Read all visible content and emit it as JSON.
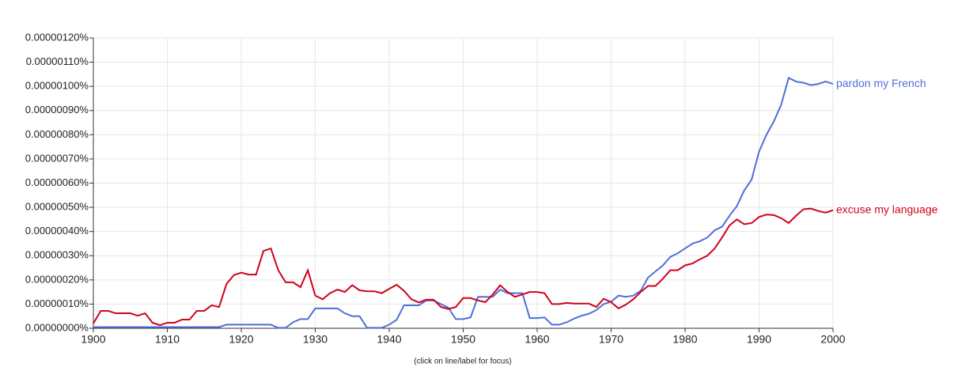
{
  "chart_data": {
    "type": "line",
    "caption": "(click on line/label for focus)",
    "x": [
      1900,
      1901,
      1902,
      1903,
      1904,
      1905,
      1906,
      1907,
      1908,
      1909,
      1910,
      1911,
      1912,
      1913,
      1914,
      1915,
      1916,
      1917,
      1918,
      1919,
      1920,
      1921,
      1922,
      1923,
      1924,
      1925,
      1926,
      1927,
      1928,
      1929,
      1930,
      1931,
      1932,
      1933,
      1934,
      1935,
      1936,
      1937,
      1938,
      1939,
      1940,
      1941,
      1942,
      1943,
      1944,
      1945,
      1946,
      1947,
      1948,
      1949,
      1950,
      1951,
      1952,
      1953,
      1954,
      1955,
      1956,
      1957,
      1958,
      1959,
      1960,
      1961,
      1962,
      1963,
      1964,
      1965,
      1966,
      1967,
      1968,
      1969,
      1970,
      1971,
      1972,
      1973,
      1974,
      1975,
      1976,
      1977,
      1978,
      1979,
      1980,
      1981,
      1982,
      1983,
      1984,
      1985,
      1986,
      1987,
      1988,
      1989,
      1990,
      1991,
      1992,
      1993,
      1994,
      1995,
      1996,
      1997,
      1998,
      1999,
      2000
    ],
    "xlim": [
      1900,
      2000
    ],
    "xticks": [
      1900,
      1910,
      1920,
      1930,
      1940,
      1950,
      1960,
      1970,
      1980,
      1990,
      2000
    ],
    "ylim": [
      0,
      1.2e-06
    ],
    "yticks": [
      {
        "value": 0,
        "label": "0.00000000%"
      },
      {
        "value": 1e-07,
        "label": "0.00000010%"
      },
      {
        "value": 2e-07,
        "label": "0.00000020%"
      },
      {
        "value": 3e-07,
        "label": "0.00000030%"
      },
      {
        "value": 4e-07,
        "label": "0.00000040%"
      },
      {
        "value": 5e-07,
        "label": "0.00000050%"
      },
      {
        "value": 6e-07,
        "label": "0.00000060%"
      },
      {
        "value": 7e-07,
        "label": "0.00000070%"
      },
      {
        "value": 8e-07,
        "label": "0.00000080%"
      },
      {
        "value": 9e-07,
        "label": "0.00000090%"
      },
      {
        "value": 1e-06,
        "label": "0.00000100%"
      },
      {
        "value": 1.1e-06,
        "label": "0.00000110%"
      },
      {
        "value": 1.2e-06,
        "label": "0.00000120%"
      }
    ],
    "grid": true,
    "series": [
      {
        "name": "pardon my French",
        "color": "#4f6fd9",
        "values": [
          5e-09,
          5e-09,
          5e-09,
          5e-09,
          5e-09,
          5e-09,
          5e-09,
          5e-09,
          5e-09,
          5e-09,
          5e-09,
          5e-09,
          5e-09,
          5e-09,
          5e-09,
          5e-09,
          5e-09,
          5e-09,
          1.5e-08,
          1.5e-08,
          1.5e-08,
          1.5e-08,
          1.5e-08,
          1.5e-08,
          1.5e-08,
          2e-09,
          2e-09,
          2.5e-08,
          3.8e-08,
          3.8e-08,
          8.2e-08,
          8.2e-08,
          8.2e-08,
          8.2e-08,
          6.2e-08,
          5e-08,
          5e-08,
          2e-09,
          2e-09,
          2e-09,
          1.5e-08,
          3.5e-08,
          9.5e-08,
          9.5e-08,
          9.5e-08,
          1.15e-07,
          1.15e-07,
          1e-07,
          8.5e-08,
          3.8e-08,
          3.8e-08,
          4.5e-08,
          1.3e-07,
          1.3e-07,
          1.3e-07,
          1.6e-07,
          1.45e-07,
          1.45e-07,
          1.45e-07,
          4.2e-08,
          4.2e-08,
          4.5e-08,
          1.5e-08,
          1.5e-08,
          2.5e-08,
          4e-08,
          5.2e-08,
          6e-08,
          7.5e-08,
          1e-07,
          1.1e-07,
          1.35e-07,
          1.3e-07,
          1.35e-07,
          1.55e-07,
          2.1e-07,
          2.35e-07,
          2.6e-07,
          2.95e-07,
          3.1e-07,
          3.3e-07,
          3.5e-07,
          3.6e-07,
          3.75e-07,
          4.05e-07,
          4.2e-07,
          4.65e-07,
          5.05e-07,
          5.7e-07,
          6.15e-07,
          7.3e-07,
          8e-07,
          8.55e-07,
          9.25e-07,
          1.035e-06,
          1.02e-06,
          1.015e-06,
          1.005e-06,
          1.01e-06,
          1.02e-06,
          1.01e-06
        ]
      },
      {
        "name": "excuse my language",
        "color": "#d0021b",
        "values": [
          2e-08,
          7.2e-08,
          7.2e-08,
          6.2e-08,
          6.2e-08,
          6.2e-08,
          5.2e-08,
          6.2e-08,
          2.3e-08,
          1.3e-08,
          2.3e-08,
          2.3e-08,
          3.6e-08,
          3.6e-08,
          7.2e-08,
          7.2e-08,
          9.5e-08,
          8.8e-08,
          1.83e-07,
          2.2e-07,
          2.3e-07,
          2.22e-07,
          2.22e-07,
          3.2e-07,
          3.3e-07,
          2.4e-07,
          1.9e-07,
          1.9e-07,
          1.7e-07,
          2.4e-07,
          1.35e-07,
          1.2e-07,
          1.45e-07,
          1.6e-07,
          1.5e-07,
          1.78e-07,
          1.57e-07,
          1.53e-07,
          1.53e-07,
          1.45e-07,
          1.63e-07,
          1.8e-07,
          1.55e-07,
          1.2e-07,
          1.07e-07,
          1.18e-07,
          1.18e-07,
          8.8e-08,
          8e-08,
          8.8e-08,
          1.25e-07,
          1.25e-07,
          1.15e-07,
          1.08e-07,
          1.4e-07,
          1.78e-07,
          1.5e-07,
          1.3e-07,
          1.4e-07,
          1.5e-07,
          1.5e-07,
          1.45e-07,
          1e-07,
          1e-07,
          1.05e-07,
          1.02e-07,
          1.02e-07,
          1.02e-07,
          8.8e-08,
          1.22e-07,
          1.08e-07,
          8.2e-08,
          9.8e-08,
          1.2e-07,
          1.5e-07,
          1.75e-07,
          1.75e-07,
          2.05e-07,
          2.4e-07,
          2.4e-07,
          2.6e-07,
          2.68e-07,
          2.85e-07,
          3e-07,
          3.3e-07,
          3.75e-07,
          4.25e-07,
          4.5e-07,
          4.3e-07,
          4.35e-07,
          4.6e-07,
          4.7e-07,
          4.68e-07,
          4.55e-07,
          4.35e-07,
          4.65e-07,
          4.92e-07,
          4.95e-07,
          4.85e-07,
          4.78e-07,
          4.88e-07
        ]
      }
    ]
  }
}
